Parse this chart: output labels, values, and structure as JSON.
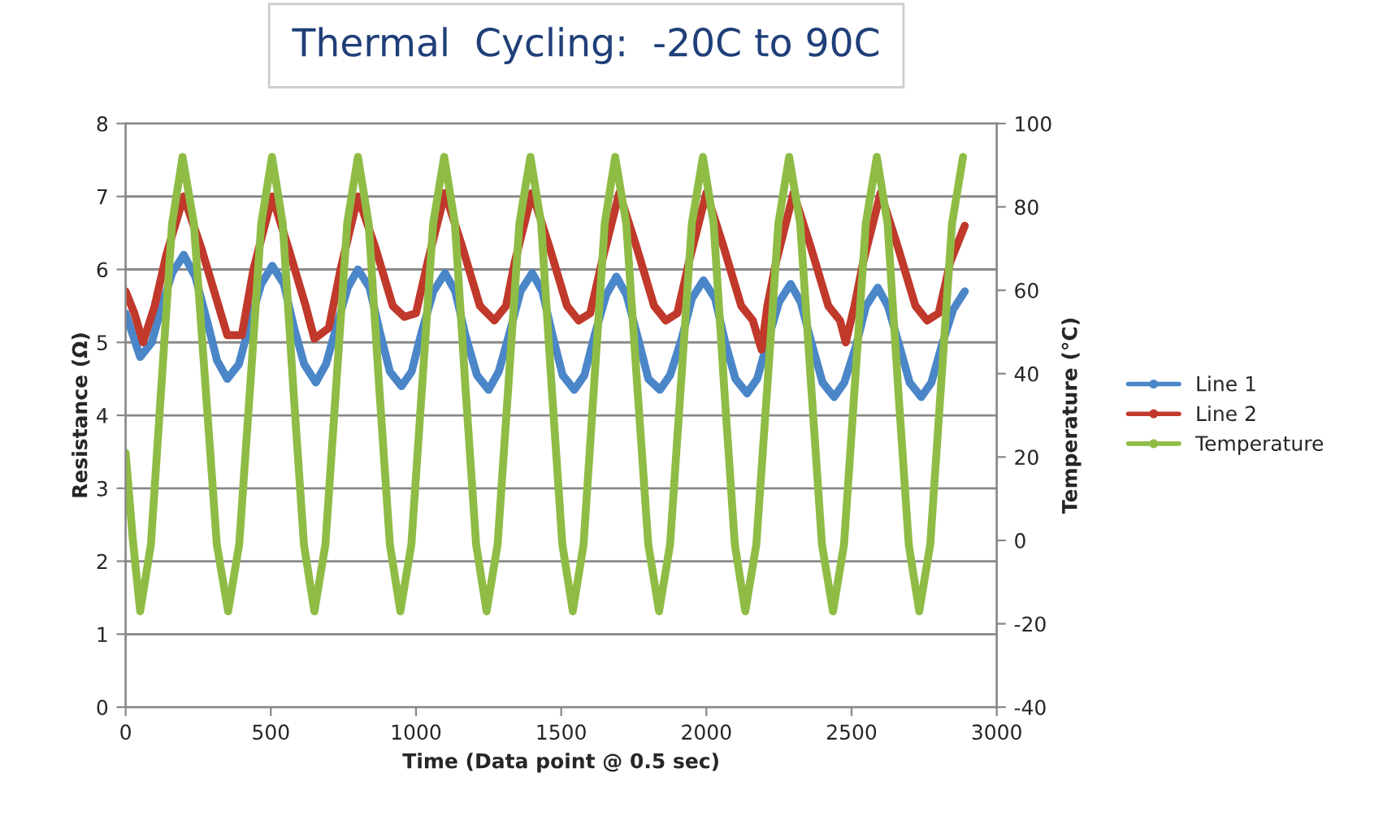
{
  "chart_data": {
    "type": "line",
    "title": "Thermal  Cycling:  -20C to 90C",
    "xlabel": "Time (Data point @ 0.5 sec)",
    "ylabel": "Resistance (Ω)",
    "y2label": "Temperature (°C)",
    "xlim": [
      0,
      3000
    ],
    "xticks": [
      0,
      500,
      1000,
      1500,
      2000,
      2500,
      3000
    ],
    "ylim": [
      0,
      8
    ],
    "yticks": [
      0,
      1,
      2,
      3,
      4,
      5,
      6,
      7,
      8
    ],
    "y2lim": [
      -40,
      100
    ],
    "y2ticks": [
      -40,
      -20,
      0,
      20,
      40,
      60,
      80,
      100
    ],
    "grid": "y",
    "legend": "right",
    "marker": "circle",
    "line_style": "solid",
    "series": [
      {
        "name": "Line 1",
        "color": "#4a86c8",
        "x": [
          0,
          50,
          90,
          125,
          160,
          200,
          240,
          280,
          315,
          350,
          390,
          430,
          467,
          505,
          545,
          580,
          615,
          655,
          690,
          725,
          765,
          800,
          840,
          875,
          910,
          950,
          985,
          1020,
          1060,
          1100,
          1135,
          1170,
          1210,
          1250,
          1285,
          1320,
          1360,
          1400,
          1435,
          1470,
          1505,
          1545,
          1580,
          1615,
          1655,
          1690,
          1725,
          1765,
          1800,
          1840,
          1875,
          1915,
          1950,
          1990,
          2030,
          2065,
          2100,
          2140,
          2175,
          2210,
          2250,
          2290,
          2325,
          2365,
          2400,
          2440,
          2475,
          2515,
          2550,
          2590,
          2625,
          2665,
          2700,
          2740,
          2775,
          2810,
          2850,
          2890
        ],
        "values": [
          5.4,
          4.8,
          5.0,
          5.5,
          5.95,
          6.2,
          5.9,
          5.3,
          4.75,
          4.5,
          4.7,
          5.3,
          5.8,
          6.05,
          5.8,
          5.2,
          4.7,
          4.45,
          4.7,
          5.2,
          5.75,
          6.0,
          5.75,
          5.15,
          4.6,
          4.4,
          4.6,
          5.15,
          5.7,
          5.95,
          5.7,
          5.1,
          4.55,
          4.35,
          4.6,
          5.1,
          5.7,
          5.95,
          5.7,
          5.1,
          4.55,
          4.35,
          4.55,
          5.1,
          5.65,
          5.9,
          5.65,
          5.05,
          4.5,
          4.35,
          4.55,
          5.05,
          5.6,
          5.85,
          5.6,
          5.0,
          4.5,
          4.3,
          4.5,
          5.0,
          5.55,
          5.8,
          5.55,
          4.95,
          4.45,
          4.25,
          4.45,
          4.95,
          5.5,
          5.75,
          5.5,
          4.95,
          4.45,
          4.25,
          4.45,
          4.95,
          5.45,
          5.7
        ]
      },
      {
        "name": "Line 2",
        "color": "#c0392b",
        "x": [
          0,
          30,
          60,
          100,
          140,
          200,
          260,
          320,
          350,
          400,
          440,
          505,
          560,
          620,
          650,
          700,
          740,
          800,
          860,
          920,
          960,
          1000,
          1040,
          1100,
          1160,
          1220,
          1270,
          1310,
          1340,
          1400,
          1460,
          1520,
          1560,
          1600,
          1640,
          1700,
          1760,
          1820,
          1860,
          1900,
          1940,
          2000,
          2060,
          2120,
          2160,
          2190,
          2210,
          2240,
          2300,
          2360,
          2420,
          2460,
          2480,
          2510,
          2540,
          2600,
          2660,
          2720,
          2760,
          2800,
          2840,
          2890
        ],
        "values": [
          5.7,
          5.4,
          5.0,
          5.5,
          6.2,
          7.0,
          6.3,
          5.5,
          5.1,
          5.1,
          6.0,
          7.0,
          6.3,
          5.5,
          5.05,
          5.2,
          6.0,
          7.0,
          6.3,
          5.5,
          5.35,
          5.4,
          6.1,
          7.05,
          6.3,
          5.5,
          5.3,
          5.5,
          6.1,
          7.05,
          6.3,
          5.5,
          5.3,
          5.4,
          6.1,
          7.05,
          6.3,
          5.5,
          5.3,
          5.4,
          6.1,
          7.05,
          6.3,
          5.5,
          5.3,
          4.9,
          5.5,
          6.1,
          7.05,
          6.3,
          5.5,
          5.3,
          5.0,
          5.5,
          6.1,
          7.05,
          6.3,
          5.5,
          5.3,
          5.4,
          6.1,
          6.6
        ]
      },
      {
        "name": "Temperature",
        "color": "#8fbc45",
        "axis": "y2",
        "x": [
          0,
          25,
          50,
          87,
          123,
          160,
          196,
          235,
          275,
          314,
          353,
          391,
          429,
          467,
          504,
          541,
          577,
          614,
          650,
          688,
          725,
          763,
          800,
          837,
          873,
          910,
          946,
          984,
          1021,
          1059,
          1097,
          1134,
          1170,
          1207,
          1243,
          1281,
          1318,
          1356,
          1394,
          1431,
          1467,
          1504,
          1540,
          1577,
          1613,
          1650,
          1686,
          1724,
          1762,
          1800,
          1837,
          1875,
          1912,
          1950,
          1988,
          2025,
          2061,
          2098,
          2134,
          2172,
          2210,
          2248,
          2285,
          2323,
          2361,
          2398,
          2436,
          2474,
          2511,
          2549,
          2587,
          2624,
          2660,
          2697,
          2733,
          2771,
          2808,
          2846,
          2884
        ],
        "values": [
          21,
          0,
          -17,
          -1,
          37,
          76,
          92,
          76,
          37,
          -1,
          -17,
          -1,
          37,
          76,
          92,
          76,
          37,
          -1,
          -17,
          -1,
          37,
          76,
          92,
          76,
          37,
          -1,
          -17,
          -1,
          37,
          76,
          92,
          76,
          37,
          -1,
          -17,
          -1,
          37,
          76,
          92,
          76,
          37,
          -1,
          -17,
          -1,
          37,
          76,
          92,
          76,
          37,
          -1,
          -17,
          -1,
          37,
          76,
          92,
          76,
          37,
          -1,
          -17,
          -1,
          37,
          76,
          92,
          76,
          37,
          -1,
          -17,
          -1,
          37,
          76,
          92,
          76,
          37,
          -1,
          -17,
          -1,
          37,
          76,
          92
        ]
      }
    ]
  }
}
